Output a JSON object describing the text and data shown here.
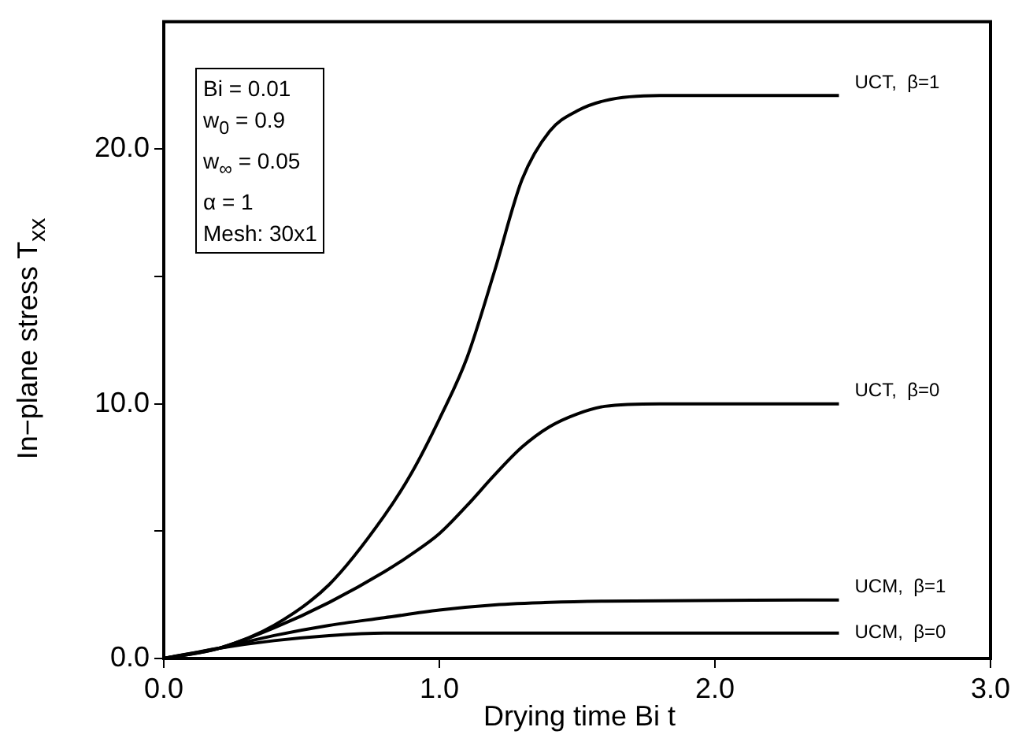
{
  "chart_data": {
    "type": "line",
    "xlabel": "Drying time Bi t",
    "ylabel": "In−plane stress  T$_{xx}$",
    "xlim": [
      0,
      3
    ],
    "xticks": [
      {
        "value": 0,
        "label": "0.0"
      },
      {
        "value": 1,
        "label": "1.0"
      },
      {
        "value": 2,
        "label": "2.0"
      },
      {
        "value": 3,
        "label": "3.0"
      }
    ],
    "ylim": [
      0,
      25
    ],
    "yticks": [
      {
        "value": 0,
        "label": "0.0"
      },
      {
        "value": 5,
        "label": null
      },
      {
        "value": 10,
        "label": "10.0"
      },
      {
        "value": 15,
        "label": null
      },
      {
        "value": 20,
        "label": "20.0"
      }
    ],
    "grid": false,
    "legend": false,
    "marker": "none",
    "line_style": "solid",
    "series": [
      {
        "name": "UCT,  β=1",
        "color": "#000000",
        "x": [
          0,
          0.2,
          0.4,
          0.6,
          0.8,
          0.9,
          1.0,
          1.1,
          1.2,
          1.3,
          1.4,
          1.5,
          1.6,
          1.8,
          2.45
        ],
        "values": [
          0,
          0.4,
          1.3,
          2.9,
          5.6,
          7.3,
          9.4,
          11.8,
          15.2,
          18.8,
          20.7,
          21.5,
          21.9,
          22.1,
          22.1
        ]
      },
      {
        "name": "UCT,  β=0",
        "color": "#000000",
        "x": [
          0,
          0.2,
          0.4,
          0.6,
          0.8,
          0.9,
          1.0,
          1.1,
          1.2,
          1.3,
          1.4,
          1.5,
          1.6,
          1.8,
          2.45
        ],
        "values": [
          0,
          0.4,
          1.2,
          2.2,
          3.4,
          4.1,
          4.9,
          6.0,
          7.2,
          8.3,
          9.1,
          9.6,
          9.9,
          10.0,
          10.0
        ]
      },
      {
        "name": "UCM,  β=1",
        "color": "#000000",
        "x": [
          0,
          0.2,
          0.4,
          0.6,
          0.8,
          1.0,
          1.2,
          1.4,
          1.6,
          2.45
        ],
        "values": [
          0,
          0.4,
          0.9,
          1.3,
          1.6,
          1.9,
          2.1,
          2.2,
          2.25,
          2.3
        ]
      },
      {
        "name": "UCM,  β=0",
        "color": "#000000",
        "x": [
          0,
          0.2,
          0.4,
          0.6,
          0.8,
          1.0,
          2.45
        ],
        "values": [
          0,
          0.4,
          0.7,
          0.9,
          1.0,
          1.0,
          1.0
        ]
      }
    ],
    "annotations": [
      "Bi = 0.01",
      "w$_{0}$ = 0.9",
      "w$_{∞}$ = 0.05",
      "α = 1",
      "Mesh: 30x1"
    ]
  }
}
